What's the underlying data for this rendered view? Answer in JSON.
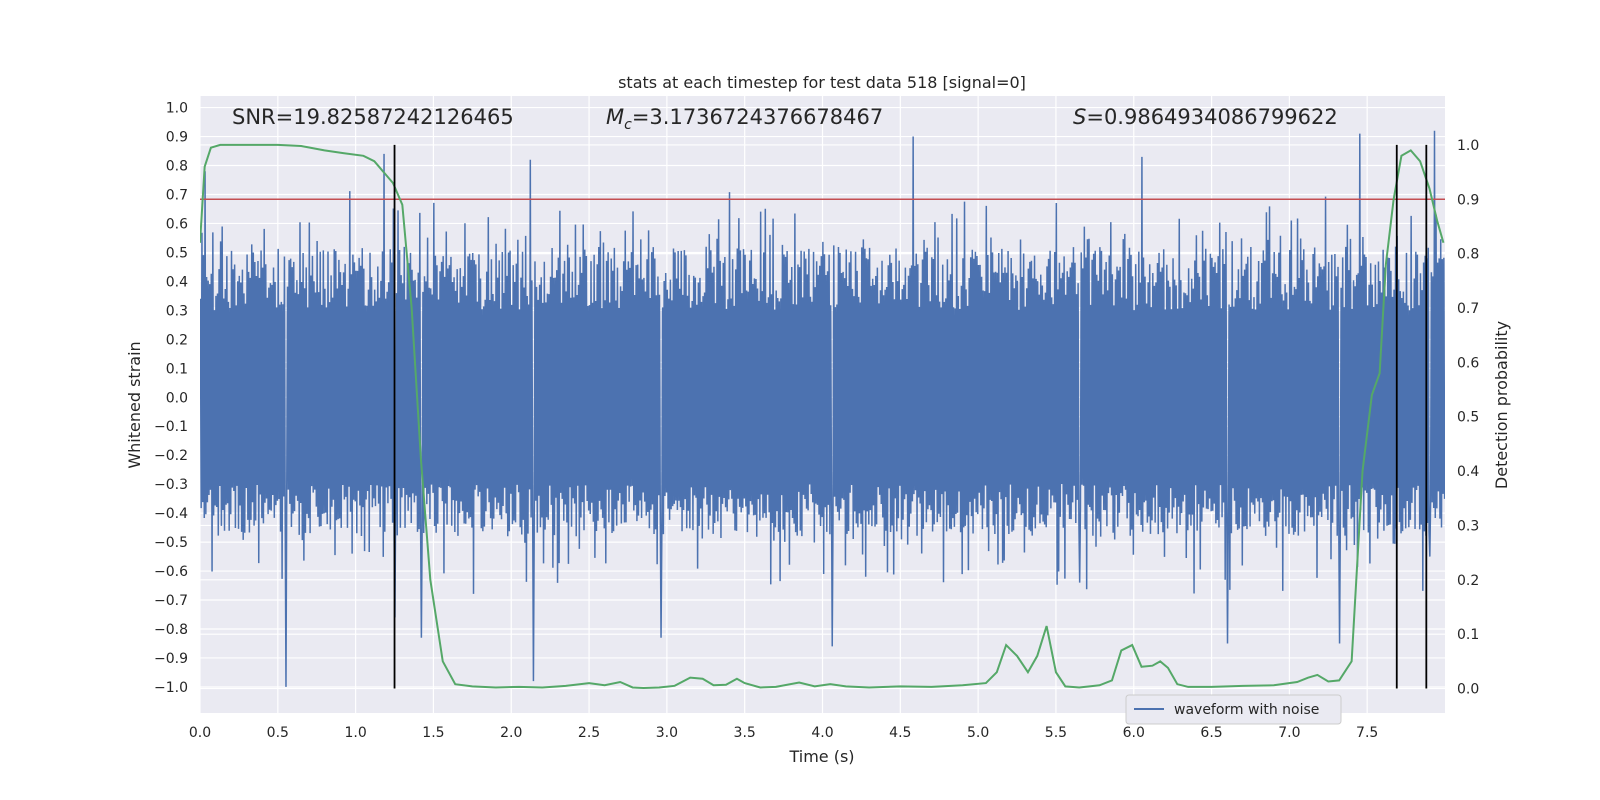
{
  "chart_data": {
    "type": "line",
    "title": "stats at each timestep for test data 518 [signal=0]",
    "xlabel": "Time (s)",
    "ylabel": "Whitened strain",
    "y2label": "Detection probability",
    "xlim": [
      0.0,
      8.0
    ],
    "ylim": [
      -1.09,
      1.04
    ],
    "y2lim": [
      -0.045,
      1.09
    ],
    "x_ticks": [
      "0.0",
      "0.5",
      "1.0",
      "1.5",
      "2.0",
      "2.5",
      "3.0",
      "3.5",
      "4.0",
      "4.5",
      "5.0",
      "5.5",
      "6.0",
      "6.5",
      "7.0",
      "7.5"
    ],
    "y_ticks": [
      "1.0",
      "0.9",
      "0.8",
      "0.7",
      "0.6",
      "0.5",
      "0.4",
      "0.3",
      "0.2",
      "0.1",
      "0.0",
      "-0.1",
      "-0.2",
      "-0.3",
      "-0.4",
      "-0.5",
      "-0.6",
      "-0.7",
      "-0.8",
      "-0.9",
      "-1.0"
    ],
    "y2_ticks": [
      "1.0",
      "0.9",
      "0.8",
      "0.7",
      "0.6",
      "0.5",
      "0.4",
      "0.3",
      "0.2",
      "0.1",
      "0.0"
    ],
    "grid": true,
    "legend": {
      "placement": "lower-right",
      "entries": [
        "waveform with noise"
      ]
    },
    "annotations": {
      "snr_text": "SNR=19.82587242126465",
      "mc_symbol": "M",
      "mc_subscript": "c",
      "mc_value": "=3.1736724376678467",
      "s_symbol": "S",
      "s_value": "=0.9864934086799622"
    },
    "waveform": {
      "name": "waveform with noise",
      "color": "#4c72b0",
      "n_samples": 1600,
      "seed": 518,
      "envelope_range": [
        -0.47,
        0.52
      ],
      "peaks": [
        [
          0.03,
          0.78
        ],
        [
          0.55,
          -1.0
        ],
        [
          1.18,
          0.84
        ],
        [
          1.25,
          -0.76
        ],
        [
          1.42,
          -0.83
        ],
        [
          2.12,
          0.82
        ],
        [
          2.14,
          -0.98
        ],
        [
          2.96,
          0.83
        ],
        [
          2.96,
          -0.83
        ],
        [
          4.06,
          -0.86
        ],
        [
          4.58,
          0.9
        ],
        [
          5.65,
          -0.64
        ],
        [
          6.05,
          0.83
        ],
        [
          6.6,
          -0.85
        ],
        [
          7.32,
          -0.85
        ],
        [
          7.45,
          0.91
        ],
        [
          7.93,
          0.92
        ],
        [
          7.9,
          -0.55
        ]
      ]
    },
    "detection_probability": {
      "color": "#55a868",
      "x": [
        0.0,
        0.03,
        0.07,
        0.13,
        0.2,
        0.35,
        0.5,
        0.65,
        0.8,
        0.92,
        1.05,
        1.12,
        1.18,
        1.24,
        1.3,
        1.36,
        1.42,
        1.48,
        1.56,
        1.64,
        1.75,
        1.9,
        2.05,
        2.2,
        2.35,
        2.5,
        2.6,
        2.7,
        2.78,
        2.85,
        2.95,
        3.05,
        3.15,
        3.23,
        3.3,
        3.38,
        3.45,
        3.5,
        3.6,
        3.7,
        3.85,
        3.95,
        4.05,
        4.15,
        4.3,
        4.5,
        4.7,
        4.9,
        5.05,
        5.12,
        5.18,
        5.25,
        5.32,
        5.38,
        5.44,
        5.5,
        5.56,
        5.65,
        5.78,
        5.86,
        5.92,
        5.99,
        6.05,
        6.12,
        6.17,
        6.22,
        6.28,
        6.35,
        6.5,
        6.7,
        6.9,
        7.05,
        7.12,
        7.18,
        7.25,
        7.32,
        7.4,
        7.47,
        7.53,
        7.58,
        7.62,
        7.67,
        7.72,
        7.78,
        7.84,
        7.9,
        7.95,
        7.99
      ],
      "y": [
        0.82,
        0.96,
        0.995,
        1.0,
        1.0,
        1.0,
        1.0,
        0.998,
        0.99,
        0.985,
        0.98,
        0.97,
        0.95,
        0.93,
        0.89,
        0.7,
        0.42,
        0.2,
        0.05,
        0.008,
        0.004,
        0.002,
        0.003,
        0.002,
        0.005,
        0.01,
        0.006,
        0.012,
        0.002,
        0.001,
        0.002,
        0.005,
        0.02,
        0.018,
        0.006,
        0.007,
        0.018,
        0.01,
        0.002,
        0.003,
        0.011,
        0.004,
        0.008,
        0.004,
        0.002,
        0.004,
        0.003,
        0.006,
        0.01,
        0.03,
        0.08,
        0.06,
        0.03,
        0.06,
        0.115,
        0.03,
        0.004,
        0.002,
        0.006,
        0.015,
        0.07,
        0.08,
        0.04,
        0.042,
        0.05,
        0.038,
        0.008,
        0.003,
        0.003,
        0.005,
        0.006,
        0.012,
        0.02,
        0.025,
        0.013,
        0.015,
        0.05,
        0.4,
        0.54,
        0.58,
        0.78,
        0.9,
        0.98,
        0.99,
        0.97,
        0.92,
        0.86,
        0.82
      ]
    },
    "threshold": {
      "color": "#c44e52",
      "y2": 0.9
    },
    "vlines": {
      "color": "#000000",
      "x": [
        1.25,
        7.69,
        7.88
      ],
      "y2_range": [
        0.0,
        1.0
      ]
    }
  }
}
